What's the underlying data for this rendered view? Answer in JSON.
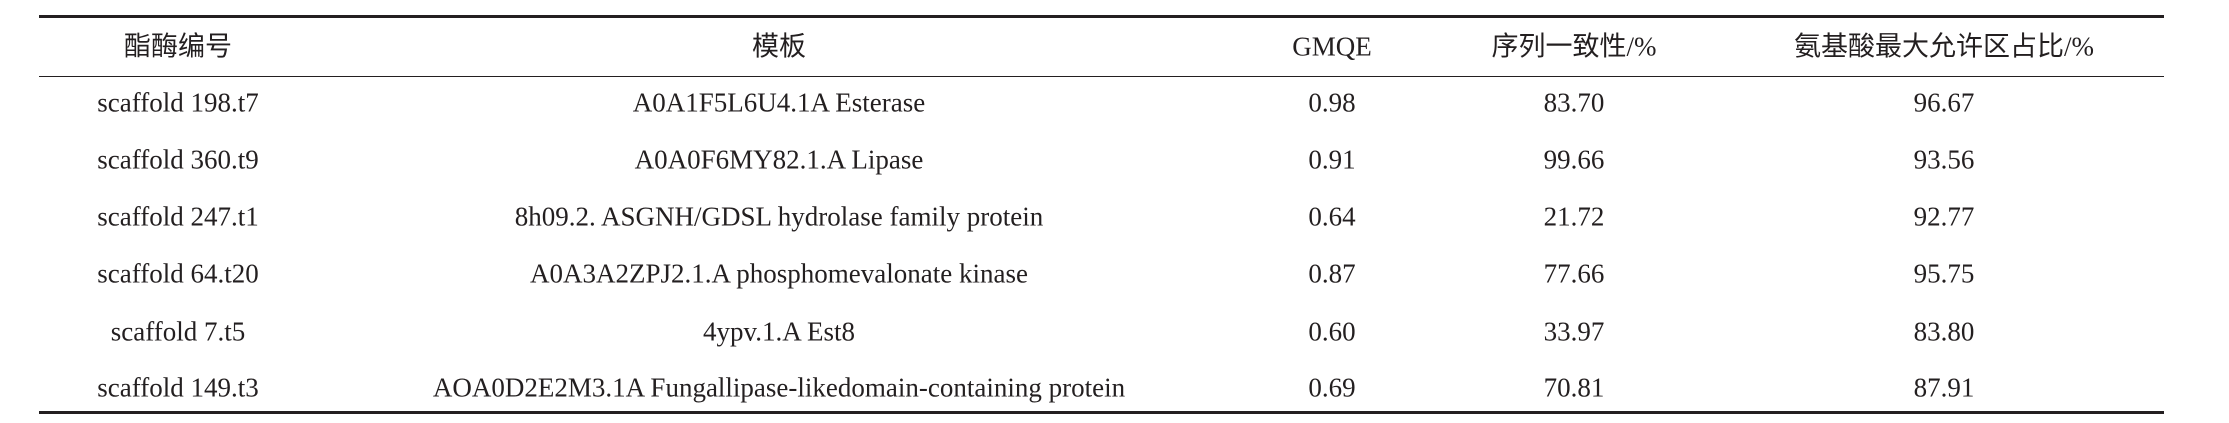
{
  "table": {
    "headers": [
      "酯酶编号",
      "模板",
      "GMQE",
      "序列一致性/%",
      "氨基酸最大允许区占比/%"
    ],
    "rows": [
      [
        "scaffold 198.t7",
        "A0A1F5L6U4.1A Esterase",
        "0.98",
        "83.70",
        "96.67"
      ],
      [
        "scaffold 360.t9",
        "A0A0F6MY82.1.A Lipase",
        "0.91",
        "99.66",
        "93.56"
      ],
      [
        "scaffold 247.t1",
        "8h09.2. ASGNH/GDSL hydrolase family protein",
        "0.64",
        "21.72",
        "92.77"
      ],
      [
        "scaffold 64.t20",
        "A0A3A2ZPJ2.1.A phosphomevalonate kinase",
        "0.87",
        "77.66",
        "95.75"
      ],
      [
        "scaffold 7.t5",
        "4ypv.1.A Est8",
        "0.60",
        "33.97",
        "83.80"
      ],
      [
        "scaffold 149.t3",
        "AOA0D2E2M3.1A Fungallipase-likedomain-containing protein",
        "0.69",
        "70.81",
        "87.91"
      ]
    ]
  }
}
